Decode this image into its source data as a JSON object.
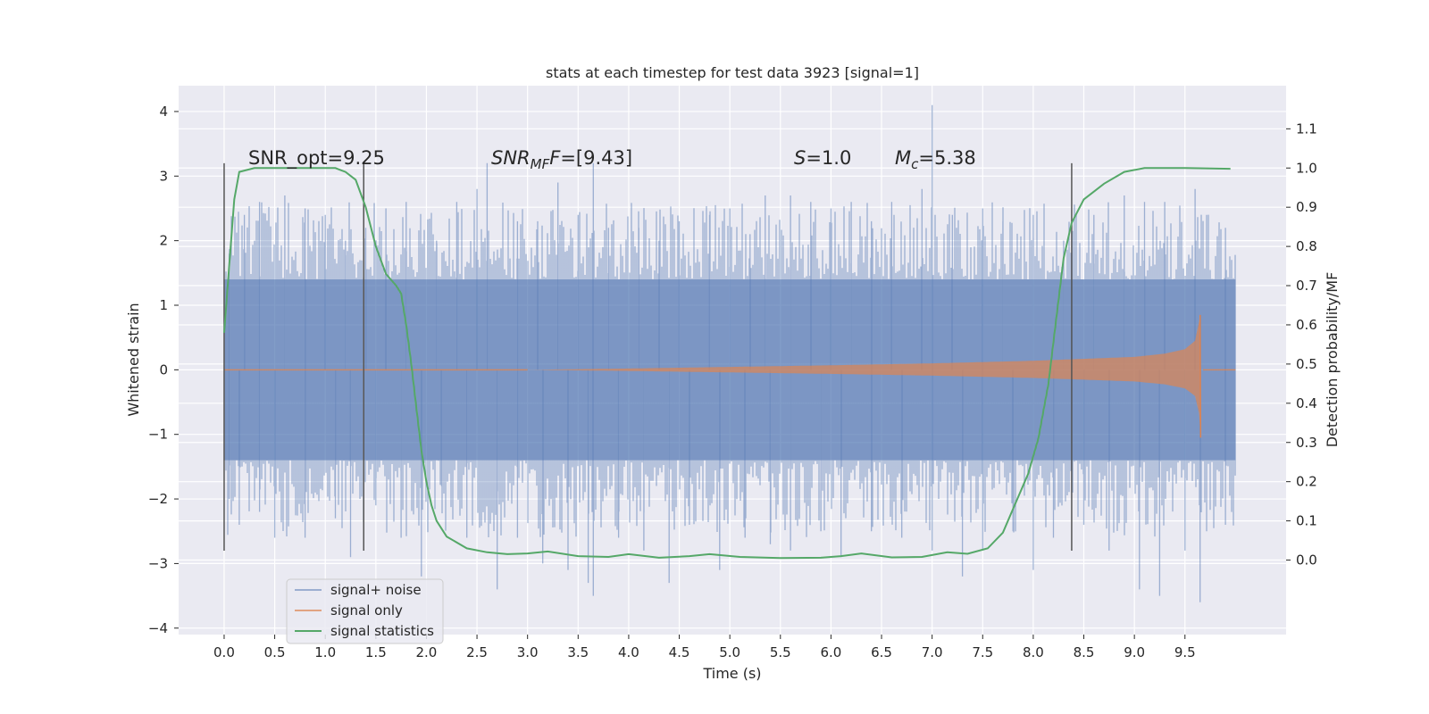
{
  "chart_data": {
    "type": "line",
    "title": "stats at each timestep for test data 3923 [signal=1]",
    "xlabel": "Time (s)",
    "ylabel": "Whitened strain",
    "y2label": "Detection probability/MF",
    "xlim": [
      -0.45,
      10.5
    ],
    "ylim": [
      -4.1,
      4.4
    ],
    "y2lim": [
      -0.19,
      1.21
    ],
    "x_ticks": [
      "0.0",
      "0.5",
      "1.0",
      "1.5",
      "2.0",
      "2.5",
      "3.0",
      "3.5",
      "4.0",
      "4.5",
      "5.0",
      "5.5",
      "6.0",
      "6.5",
      "7.0",
      "7.5",
      "8.0",
      "8.5",
      "9.0",
      "9.5"
    ],
    "y_ticks": [
      "−4",
      "−3",
      "−2",
      "−1",
      "0",
      "1",
      "2",
      "3",
      "4"
    ],
    "y2_ticks": [
      "0.0",
      "0.1",
      "0.2",
      "0.3",
      "0.4",
      "0.5",
      "0.6",
      "0.7",
      "0.8",
      "0.9",
      "1.0",
      "1.1"
    ],
    "grid": true,
    "legend_position": "lower-left",
    "annotations": {
      "snr_opt": "SNR_opt=9.25",
      "snr_mf_main": "SNR",
      "snr_mf_sub": "MF",
      "snr_mf_value": "=[9.43]",
      "s_label": "S",
      "s_value": "=1.0",
      "mc_main": "M",
      "mc_sub": "c",
      "mc_value": "=5.38"
    },
    "vertical_lines": {
      "x": [
        0.0,
        1.38,
        8.38
      ],
      "y_range": [
        -2.8,
        3.2
      ]
    },
    "series": [
      {
        "name": "signal+ noise",
        "color": "#4c72b0",
        "opacity": 0.5,
        "x_range": [
          0.0,
          10.0
        ],
        "envelope": [
          -1.4,
          1.4
        ],
        "peaks_pos": [
          [
            0.05,
            1.8
          ],
          [
            0.2,
            2.4
          ],
          [
            0.35,
            2.6
          ],
          [
            0.6,
            2.7
          ],
          [
            0.8,
            2.5
          ],
          [
            1.0,
            2.4
          ],
          [
            1.2,
            2.0
          ],
          [
            1.4,
            2.2
          ],
          [
            1.6,
            2.5
          ],
          [
            1.8,
            2.6
          ],
          [
            2.1,
            2.0
          ],
          [
            2.3,
            2.6
          ],
          [
            2.5,
            2.8
          ],
          [
            2.6,
            3.2
          ],
          [
            2.9,
            2.3
          ],
          [
            3.1,
            2.3
          ],
          [
            3.3,
            2.9
          ],
          [
            3.5,
            2.4
          ],
          [
            3.65,
            3.2
          ],
          [
            3.8,
            2.2
          ],
          [
            4.1,
            2.2
          ],
          [
            4.3,
            2.0
          ],
          [
            4.5,
            2.3
          ],
          [
            4.8,
            2.4
          ],
          [
            5.0,
            2.5
          ],
          [
            5.2,
            2.1
          ],
          [
            5.35,
            2.7
          ],
          [
            5.6,
            2.7
          ],
          [
            5.8,
            2.6
          ],
          [
            6.0,
            2.5
          ],
          [
            6.2,
            2.6
          ],
          [
            6.4,
            2.3
          ],
          [
            6.6,
            2.6
          ],
          [
            6.9,
            2.8
          ],
          [
            7.0,
            4.1
          ],
          [
            7.2,
            2.4
          ],
          [
            7.5,
            2.5
          ],
          [
            7.7,
            2.3
          ],
          [
            8.0,
            2.4
          ],
          [
            8.3,
            2.0
          ],
          [
            8.6,
            2.4
          ],
          [
            8.9,
            2.7
          ],
          [
            9.1,
            2.6
          ],
          [
            9.3,
            2.6
          ],
          [
            9.6,
            2.8
          ],
          [
            9.9,
            2.2
          ]
        ],
        "peaks_neg": [
          [
            0.05,
            -2.0
          ],
          [
            0.15,
            -2.4
          ],
          [
            0.35,
            -2.2
          ],
          [
            0.5,
            -2.6
          ],
          [
            0.8,
            -2.6
          ],
          [
            1.1,
            -2.3
          ],
          [
            1.25,
            -2.9
          ],
          [
            1.5,
            -2.1
          ],
          [
            1.75,
            -2.6
          ],
          [
            1.95,
            -3.2
          ],
          [
            2.15,
            -1.8
          ],
          [
            2.4,
            -2.6
          ],
          [
            2.7,
            -3.4
          ],
          [
            2.9,
            -2.6
          ],
          [
            3.15,
            -3.0
          ],
          [
            3.4,
            -3.1
          ],
          [
            3.6,
            -3.3
          ],
          [
            3.65,
            -3.5
          ],
          [
            3.9,
            -2.6
          ],
          [
            4.15,
            -2.8
          ],
          [
            4.4,
            -3.3
          ],
          [
            4.6,
            -2.4
          ],
          [
            4.9,
            -3.1
          ],
          [
            5.15,
            -2.6
          ],
          [
            5.4,
            -2.7
          ],
          [
            5.6,
            -2.8
          ],
          [
            5.9,
            -2.5
          ],
          [
            6.1,
            -2.9
          ],
          [
            6.4,
            -2.5
          ],
          [
            6.7,
            -2.6
          ],
          [
            7.0,
            -2.8
          ],
          [
            7.3,
            -3.2
          ],
          [
            7.5,
            -2.8
          ],
          [
            7.8,
            -2.5
          ],
          [
            8.0,
            -3.1
          ],
          [
            8.2,
            -2.6
          ],
          [
            8.5,
            -2.4
          ],
          [
            8.75,
            -2.8
          ],
          [
            9.05,
            -3.4
          ],
          [
            9.25,
            -3.5
          ],
          [
            9.5,
            -2.8
          ],
          [
            9.65,
            -3.6
          ],
          [
            9.9,
            -2.4
          ]
        ]
      },
      {
        "name": "signal only",
        "color": "#dd8452",
        "opacity": 0.7,
        "start": 3.0,
        "merger": 9.65,
        "amplitude_points": [
          [
            3.0,
            0.0
          ],
          [
            4.0,
            0.02
          ],
          [
            5.0,
            0.045
          ],
          [
            6.0,
            0.07
          ],
          [
            7.0,
            0.1
          ],
          [
            8.0,
            0.14
          ],
          [
            8.5,
            0.17
          ],
          [
            9.0,
            0.2
          ],
          [
            9.3,
            0.25
          ],
          [
            9.5,
            0.32
          ],
          [
            9.6,
            0.45
          ],
          [
            9.64,
            0.75
          ],
          [
            9.65,
            0.85
          ]
        ],
        "merger_min": -1.05,
        "after_amplitude": 0.02,
        "end": 10.0
      },
      {
        "name": "signal statistics",
        "color": "#55a868",
        "axis": "right",
        "points": [
          [
            0.0,
            0.58
          ],
          [
            0.05,
            0.75
          ],
          [
            0.1,
            0.92
          ],
          [
            0.15,
            0.99
          ],
          [
            0.3,
            1.0
          ],
          [
            0.8,
            1.0
          ],
          [
            1.1,
            1.0
          ],
          [
            1.2,
            0.99
          ],
          [
            1.3,
            0.97
          ],
          [
            1.4,
            0.9
          ],
          [
            1.5,
            0.8
          ],
          [
            1.6,
            0.73
          ],
          [
            1.7,
            0.7
          ],
          [
            1.75,
            0.68
          ],
          [
            1.8,
            0.6
          ],
          [
            1.85,
            0.5
          ],
          [
            1.9,
            0.39
          ],
          [
            1.95,
            0.28
          ],
          [
            2.0,
            0.2
          ],
          [
            2.05,
            0.14
          ],
          [
            2.1,
            0.1
          ],
          [
            2.2,
            0.06
          ],
          [
            2.4,
            0.03
          ],
          [
            2.6,
            0.02
          ],
          [
            2.8,
            0.015
          ],
          [
            3.0,
            0.017
          ],
          [
            3.2,
            0.022
          ],
          [
            3.5,
            0.01
          ],
          [
            3.8,
            0.008
          ],
          [
            4.0,
            0.015
          ],
          [
            4.3,
            0.006
          ],
          [
            4.6,
            0.01
          ],
          [
            4.8,
            0.015
          ],
          [
            5.1,
            0.008
          ],
          [
            5.5,
            0.005
          ],
          [
            5.9,
            0.006
          ],
          [
            6.1,
            0.01
          ],
          [
            6.3,
            0.017
          ],
          [
            6.6,
            0.007
          ],
          [
            6.9,
            0.008
          ],
          [
            7.15,
            0.02
          ],
          [
            7.35,
            0.016
          ],
          [
            7.55,
            0.03
          ],
          [
            7.7,
            0.07
          ],
          [
            7.8,
            0.13
          ],
          [
            7.95,
            0.22
          ],
          [
            8.05,
            0.31
          ],
          [
            8.15,
            0.45
          ],
          [
            8.22,
            0.6
          ],
          [
            8.3,
            0.77
          ],
          [
            8.38,
            0.86
          ],
          [
            8.5,
            0.92
          ],
          [
            8.7,
            0.96
          ],
          [
            8.9,
            0.99
          ],
          [
            9.1,
            1.0
          ],
          [
            9.5,
            1.0
          ],
          [
            9.95,
            0.998
          ]
        ]
      }
    ]
  }
}
